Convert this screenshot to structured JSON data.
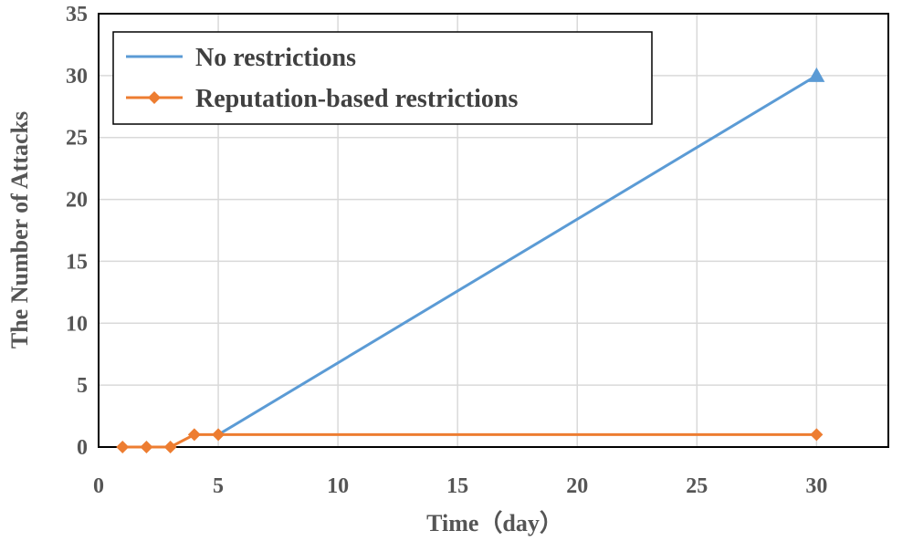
{
  "chart_data": {
    "type": "line",
    "xlabel": "Time（day）",
    "ylabel": "The Number of  Attacks",
    "xlim": [
      0,
      33
    ],
    "ylim": [
      0,
      35
    ],
    "xticks": [
      0,
      5,
      10,
      15,
      20,
      25,
      30
    ],
    "yticks": [
      0,
      5,
      10,
      15,
      20,
      25,
      30,
      35
    ],
    "grid": true,
    "legend": "top-left",
    "series": [
      {
        "name": "No restrictions",
        "color": "#5b9bd5",
        "marker": "triangle",
        "x": [
          5,
          30
        ],
        "y": [
          1,
          30
        ]
      },
      {
        "name": "Reputation-based restrictions",
        "color": "#ed7d31",
        "marker": "diamond",
        "x": [
          1,
          2,
          3,
          4,
          5,
          30
        ],
        "y": [
          0,
          0,
          0,
          1,
          1,
          1
        ]
      }
    ]
  }
}
